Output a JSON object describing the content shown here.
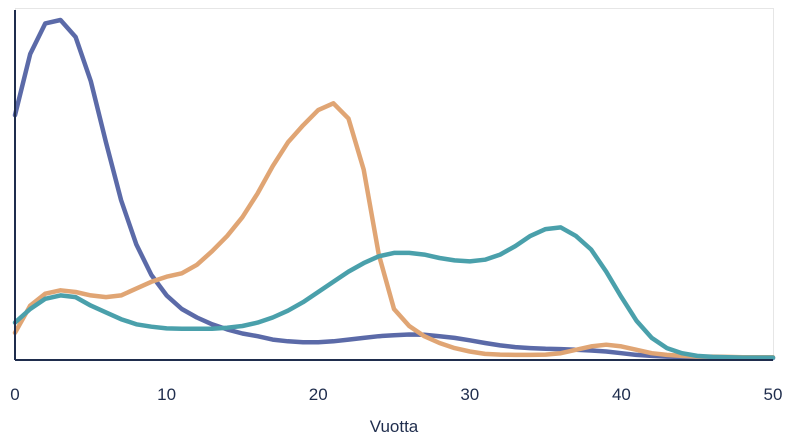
{
  "chart_data": {
    "type": "line",
    "xlabel": "Vuotta",
    "ylabel": "",
    "xlim": [
      0,
      50
    ],
    "ylim": [
      0,
      100
    ],
    "grid": false,
    "x_ticks": [
      "0",
      "10",
      "20",
      "30",
      "40",
      "50"
    ],
    "x": [
      0,
      1,
      2,
      3,
      4,
      5,
      6,
      7,
      8,
      9,
      10,
      11,
      12,
      13,
      14,
      15,
      16,
      17,
      18,
      19,
      20,
      21,
      22,
      23,
      24,
      25,
      26,
      27,
      28,
      29,
      30,
      31,
      32,
      33,
      34,
      35,
      36,
      37,
      38,
      39,
      40,
      41,
      42,
      43,
      44,
      45,
      46,
      47,
      48,
      49,
      50
    ],
    "series": [
      {
        "color": "#5b6aa8",
        "values": [
          72,
          90,
          99,
          100,
          95,
          82,
          64,
          47,
          34,
          25,
          19,
          15,
          12.5,
          10.5,
          9,
          7.8,
          7,
          6,
          5.5,
          5.2,
          5.2,
          5.5,
          6,
          6.5,
          7,
          7.3,
          7.5,
          7.4,
          7,
          6.5,
          5.8,
          5,
          4.3,
          3.8,
          3.5,
          3.3,
          3.2,
          3,
          2.8,
          2.5,
          2,
          1.5,
          1.2,
          1,
          0.9,
          0.8,
          0.7,
          0.6,
          0.6,
          0.6,
          0.6
        ]
      },
      {
        "color": "#e0a574",
        "values": [
          8,
          16,
          19.5,
          20.5,
          20,
          19,
          18.5,
          19,
          21,
          23,
          24.5,
          25.5,
          28,
          32,
          36.5,
          42,
          49,
          57,
          64,
          69,
          73.5,
          75.5,
          71,
          56,
          31,
          15,
          10,
          7,
          5,
          3.5,
          2.5,
          1.8,
          1.6,
          1.5,
          1.5,
          1.6,
          2,
          3,
          4,
          4.5,
          4,
          3,
          2,
          1.5,
          1.2,
          1,
          1,
          0.9,
          0.8,
          0.8,
          0.8
        ]
      },
      {
        "color": "#4aa0ab",
        "values": [
          11,
          15,
          18,
          19,
          18.5,
          16,
          14,
          12,
          10.5,
          9.8,
          9.3,
          9.2,
          9.2,
          9.2,
          9.5,
          10,
          11,
          12.5,
          14.5,
          17,
          20,
          23,
          26,
          28.5,
          30.5,
          31.5,
          31.5,
          31,
          30,
          29.3,
          29,
          29.5,
          31,
          33.5,
          36.5,
          38.5,
          39,
          36.5,
          32.5,
          26,
          18.5,
          11.5,
          6.5,
          3.5,
          2,
          1.2,
          0.9,
          0.8,
          0.7,
          0.7,
          0.7
        ]
      }
    ]
  }
}
